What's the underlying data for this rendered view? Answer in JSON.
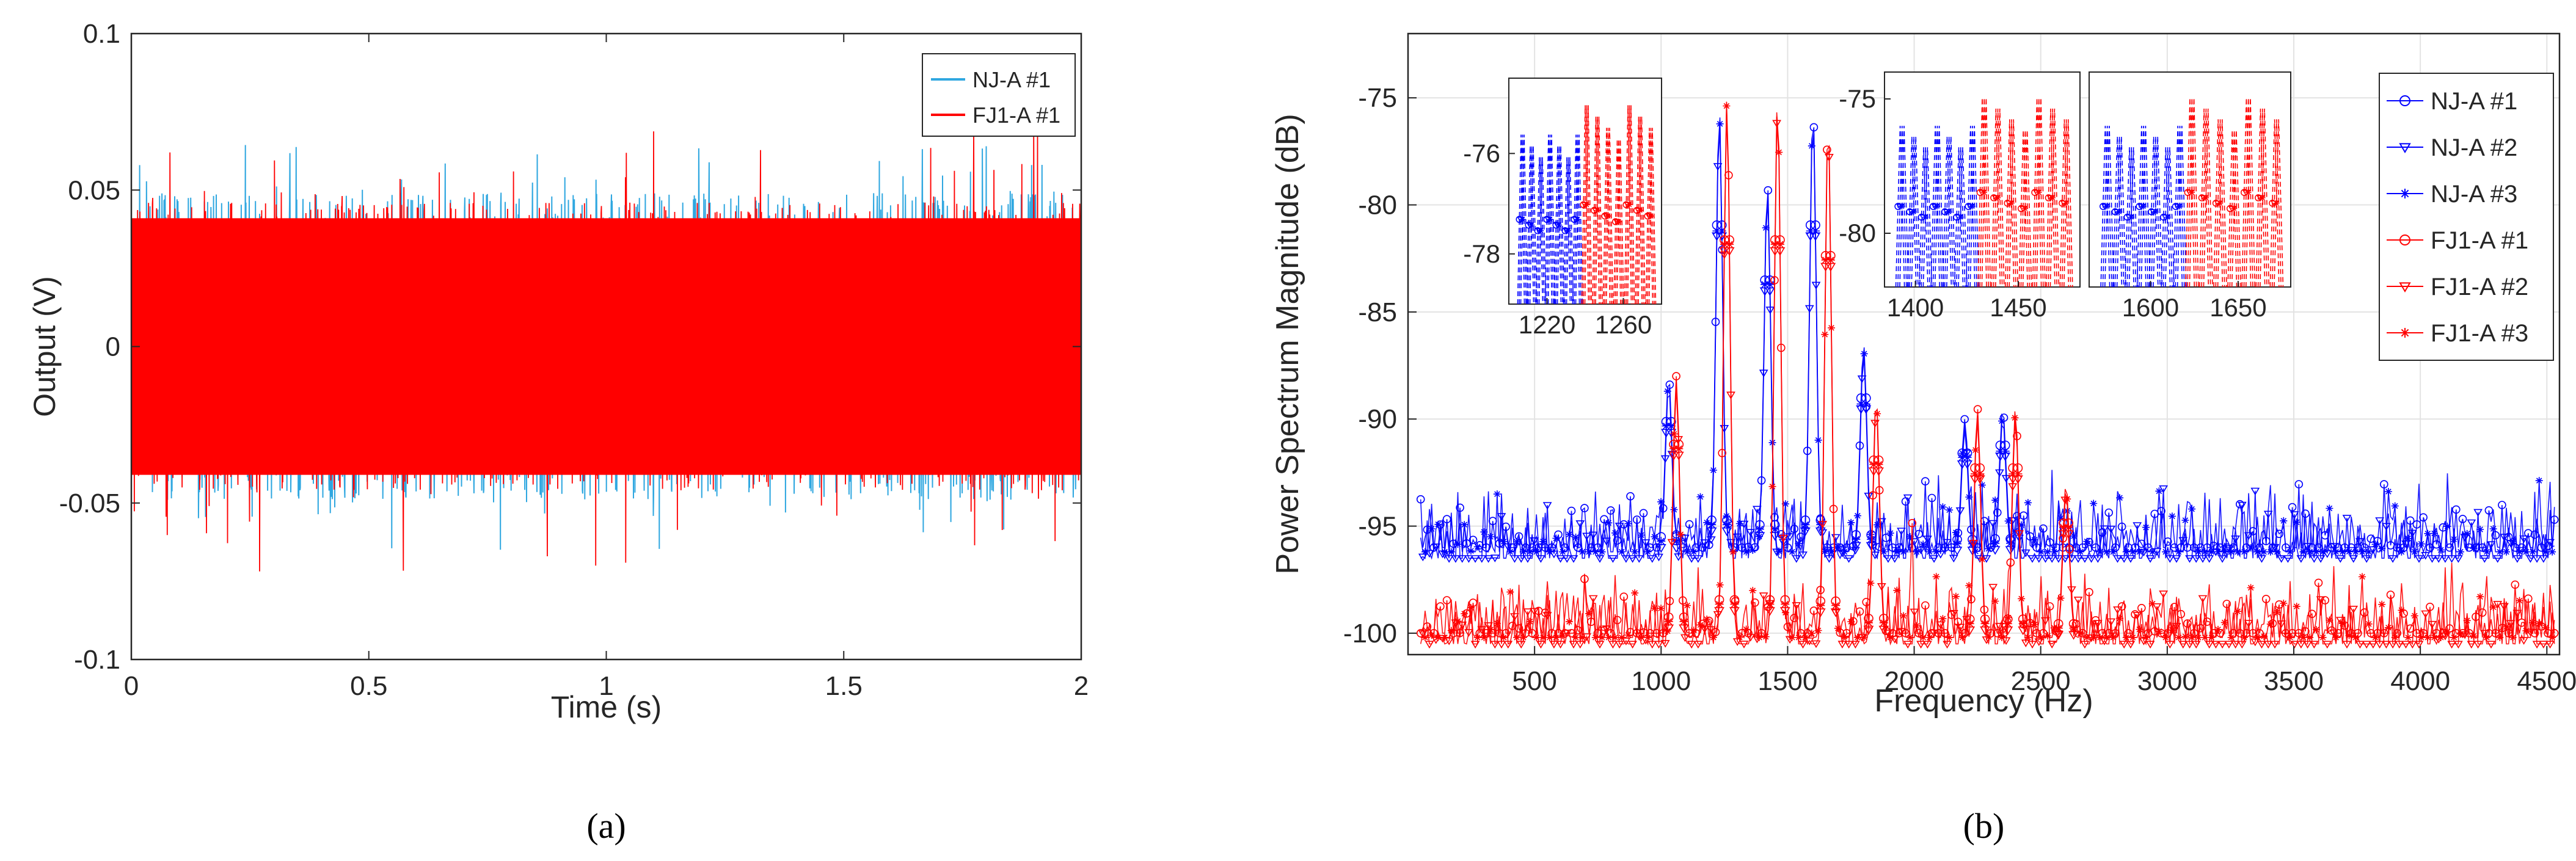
{
  "chart_data": [
    {
      "panel_label": "(a)",
      "type": "line",
      "title": "",
      "xlabel": "Time (s)",
      "ylabel": "Output (V)",
      "xlim": [
        0,
        2
      ],
      "ylim": [
        -0.1,
        0.1
      ],
      "x_ticks": [
        "0",
        "0.5",
        "1",
        "1.5",
        "2"
      ],
      "y_ticks": [
        "0.1",
        "0.05",
        "0",
        "-0.05",
        "-0.1"
      ],
      "grid": false,
      "legend_position": "top-right",
      "series": [
        {
          "name": "NJ-A #1",
          "color": "#2fa7e0",
          "typical_envelope": 0.045,
          "peak_amplitude": 0.065,
          "signal": "broadband noise"
        },
        {
          "name": "FJ1-A #1",
          "color": "#ff0000",
          "typical_envelope": 0.042,
          "peak_amplitude": 0.072,
          "signal": "broadband noise"
        }
      ]
    },
    {
      "panel_label": "(b)",
      "type": "line",
      "title": "",
      "xlabel": "Frequency (Hz)",
      "ylabel": "Power Spectrum Magnitude (dB)",
      "xlim": [
        0,
        4550
      ],
      "ylim": [
        -101,
        -72
      ],
      "x_ticks": [
        "500",
        "1000",
        "1500",
        "2000",
        "2500",
        "3000",
        "3500",
        "4000",
        "4500"
      ],
      "y_ticks": [
        "-75",
        "-80",
        "-85",
        "-90",
        "-95",
        "-100"
      ],
      "grid": true,
      "legend_position": "top-right",
      "series": [
        {
          "name": "NJ-A #1",
          "color": "#0000ff",
          "marker": "circle",
          "baseline": -96,
          "peaks": [
            [
              1030,
              -88
            ],
            [
              1230,
              -75.5
            ],
            [
              1420,
              -79
            ],
            [
              1600,
              -75.5
            ],
            [
              1800,
              -86.5
            ],
            [
              2200,
              -90
            ],
            [
              2350,
              -89.5
            ]
          ]
        },
        {
          "name": "NJ-A #2",
          "color": "#0000ff",
          "marker": "triangle-down",
          "baseline": -96.5,
          "peaks": [
            [
              1030,
              -88.5
            ],
            [
              1230,
              -76
            ],
            [
              1420,
              -79.5
            ],
            [
              1600,
              -76
            ],
            [
              1800,
              -87
            ],
            [
              2200,
              -90.5
            ],
            [
              2350,
              -90
            ]
          ]
        },
        {
          "name": "NJ-A #3",
          "color": "#0000ff",
          "marker": "star",
          "baseline": -96.2,
          "peaks": [
            [
              1030,
              -88.2
            ],
            [
              1230,
              -75.8
            ],
            [
              1420,
              -79.2
            ],
            [
              1600,
              -75.8
            ],
            [
              1800,
              -86.8
            ],
            [
              2200,
              -90.2
            ],
            [
              2350,
              -89.8
            ]
          ]
        },
        {
          "name": "FJ1-A #1",
          "color": "#ff0000",
          "marker": "circle",
          "baseline": -100,
          "peaks": [
            [
              1060,
              -88
            ],
            [
              1260,
              -75
            ],
            [
              1460,
              -75
            ],
            [
              1660,
              -76
            ],
            [
              1850,
              -89
            ],
            [
              2250,
              -89.5
            ],
            [
              2400,
              -89.5
            ],
            [
              2600,
              -93
            ]
          ]
        },
        {
          "name": "FJ1-A #2",
          "color": "#ff0000",
          "marker": "triangle-down",
          "baseline": -100.5,
          "peaks": [
            [
              1060,
              -88.5
            ],
            [
              1260,
              -75.5
            ],
            [
              1460,
              -75.5
            ],
            [
              1660,
              -76.5
            ],
            [
              1850,
              -89.5
            ],
            [
              2250,
              -90
            ],
            [
              2400,
              -90
            ],
            [
              2600,
              -93.5
            ]
          ]
        },
        {
          "name": "FJ1-A #3",
          "color": "#ff0000",
          "marker": "star",
          "baseline": -100.2,
          "peaks": [
            [
              1060,
              -88.2
            ],
            [
              1260,
              -75.2
            ],
            [
              1460,
              -75.2
            ],
            [
              1660,
              -76.2
            ],
            [
              1850,
              -89.2
            ],
            [
              2250,
              -89.8
            ],
            [
              2400,
              -89.8
            ],
            [
              2600,
              -93.2
            ]
          ]
        }
      ],
      "insets": [
        {
          "name": "inset-1220-1260",
          "xlim": [
            1200,
            1280
          ],
          "ylim": [
            -79,
            -74.5
          ],
          "x_ticks": [
            "1220",
            "1260"
          ],
          "y_ticks": [
            "-76",
            "-78"
          ]
        },
        {
          "name": "inset-1400-1450",
          "xlim": [
            1385,
            1480
          ],
          "ylim": [
            -82,
            -74
          ],
          "x_ticks": [
            "1400",
            "1450"
          ],
          "y_ticks": [
            "-75",
            "-80"
          ]
        },
        {
          "name": "inset-1600-1650",
          "xlim": [
            1565,
            1680
          ],
          "ylim": [
            -82,
            -74
          ],
          "x_ticks": [
            "1600",
            "1650"
          ],
          "y_ticks": []
        }
      ]
    }
  ]
}
